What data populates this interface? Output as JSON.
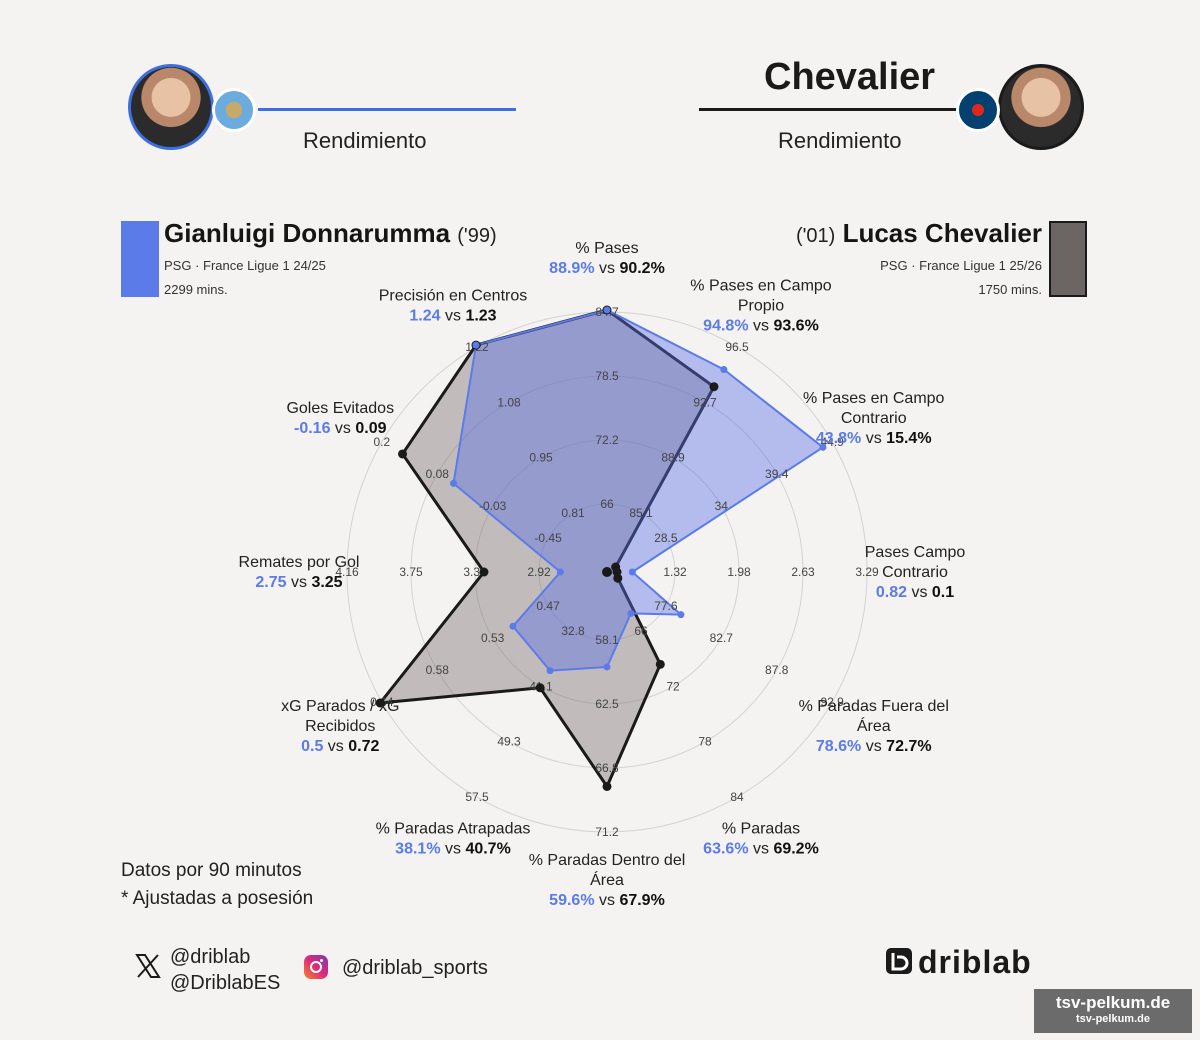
{
  "header": {
    "left": {
      "name": "",
      "subtitle": "Rendimiento"
    },
    "right": {
      "name": "Chevalier",
      "subtitle": "Rendimiento"
    }
  },
  "players": {
    "left": {
      "name": "Gianluigi Donnarumma",
      "year": "('99)",
      "team_league": "PSG · France Ligue 1 24/25",
      "minutes": "2299 mins.",
      "color": "#5b7be8"
    },
    "right": {
      "name": "Lucas Chevalier",
      "year": "('01)",
      "team_league": "PSG · France Ligue 1 25/26",
      "minutes": "1750 mins.",
      "color": "#6b6664"
    }
  },
  "crests": {
    "left": "manchester-city-crest",
    "right": "psg-crest"
  },
  "chart_data": {
    "type": "radar",
    "series": [
      {
        "name": "Gianluigi Donnarumma",
        "color": "#5b7be8"
      },
      {
        "name": "Lucas Chevalier",
        "color": "#1a1a1a"
      }
    ],
    "metrics": [
      {
        "id": "pases",
        "label": [
          "% Pases"
        ],
        "a": 88.9,
        "b": 90.2,
        "a_text": "88.9%",
        "b_text": "90.2%",
        "ticks": [
          "66",
          "72.2",
          "78.5",
          "84.7"
        ]
      },
      {
        "id": "pases-campo-propio",
        "label": [
          "% Pases en Campo",
          "Propio"
        ],
        "a": 94.8,
        "b": 93.6,
        "a_text": "94.8%",
        "b_text": "93.6%",
        "ticks": [
          "85.1",
          "88.9",
          "92.7",
          "96.5"
        ]
      },
      {
        "id": "pases-campo-contrario-pct",
        "label": [
          "% Pases en Campo",
          "Contrario"
        ],
        "a": 43.8,
        "b": 15.4,
        "a_text": "43.8%",
        "b_text": "15.4%",
        "ticks": [
          "28.5",
          "34",
          "39.4",
          "44.9"
        ]
      },
      {
        "id": "pases-campo-contrario",
        "label": [
          "Pases Campo",
          "Contrario"
        ],
        "a": 0.82,
        "b": 0.1,
        "a_text": "0.82",
        "b_text": "0.1",
        "ticks": [
          "1.32",
          "1.98",
          "2.63",
          "3.29"
        ]
      },
      {
        "id": "paradas-fuera-area",
        "label": [
          "% Paradas Fuera del",
          "Área"
        ],
        "a": 78.6,
        "b": 72.7,
        "a_text": "78.6%",
        "b_text": "72.7%",
        "ticks": [
          "77.6",
          "82.7",
          "87.8",
          "92.9"
        ]
      },
      {
        "id": "paradas",
        "label": [
          "% Paradas"
        ],
        "a": 63.6,
        "b": 69.2,
        "a_text": "63.6%",
        "b_text": "69.2%",
        "ticks": [
          "66",
          "72",
          "78",
          "84"
        ]
      },
      {
        "id": "paradas-dentro-area",
        "label": [
          "% Paradas Dentro del",
          "Área"
        ],
        "a": 59.6,
        "b": 67.9,
        "a_text": "59.6%",
        "b_text": "67.9%",
        "ticks": [
          "58.1",
          "62.5",
          "66.8",
          "71.2"
        ]
      },
      {
        "id": "paradas-atrapadas",
        "label": [
          "% Paradas Atrapadas"
        ],
        "a": 38.1,
        "b": 40.7,
        "a_text": "38.1%",
        "b_text": "40.7%",
        "ticks": [
          "32.8",
          "41.1",
          "49.3",
          "57.5"
        ]
      },
      {
        "id": "xg-parados",
        "label": [
          "xG Parados / xG",
          "Recibidos"
        ],
        "a": 0.5,
        "b": 0.72,
        "a_text": "0.5",
        "b_text": "0.72",
        "ticks": [
          "0.47",
          "0.53",
          "0.58",
          "0.64"
        ]
      },
      {
        "id": "remates-por-gol",
        "label": [
          "Remates por Gol"
        ],
        "a": 2.75,
        "b": 3.25,
        "a_text": "2.75",
        "b_text": "3.25",
        "ticks": [
          "2.92",
          "3.33",
          "3.75",
          "4.16"
        ]
      },
      {
        "id": "goles-evitados",
        "label": [
          "Goles Evitados"
        ],
        "a": -0.16,
        "b": 0.09,
        "a_text": "-0.16",
        "b_text": "0.09",
        "ticks": [
          "-0.45",
          "-0.03",
          "0.08",
          "0.2"
        ]
      },
      {
        "id": "precision-centros",
        "label": [
          "Precisión en Centros"
        ],
        "a": 1.24,
        "b": 1.23,
        "a_text": "1.24",
        "b_text": "1.23",
        "ticks": [
          "0.81",
          "0.95",
          "1.08",
          "1.22"
        ]
      }
    ],
    "vs": "vs"
  },
  "footer": {
    "note1": "Datos por 90 minutos",
    "note2": "* Ajustadas a posesión",
    "x_handle1": "@driblab",
    "x_handle2": "@DriblabES",
    "instagram_handle": "@driblab_sports",
    "brand": "driblab",
    "icons": {
      "x": "x-logo-icon",
      "instagram": "instagram-icon",
      "brand": "driblab-logo"
    }
  },
  "watermark": {
    "line1": "tsv-pelkum.de",
    "line2": "tsv-pelkum.de"
  }
}
